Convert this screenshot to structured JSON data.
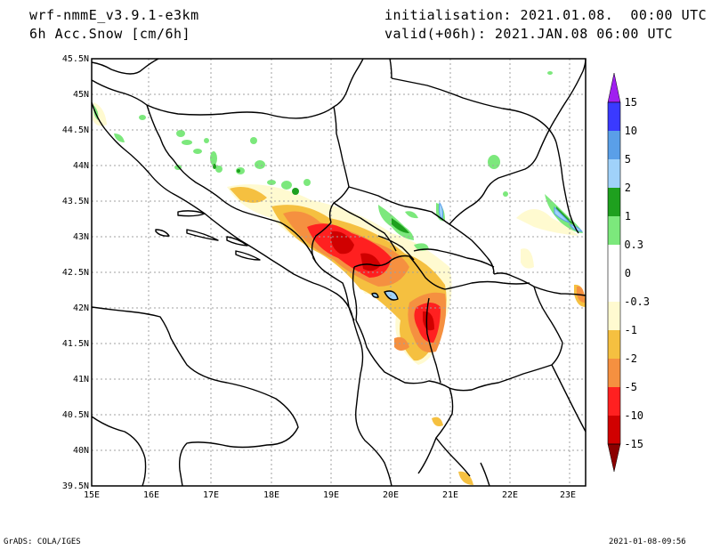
{
  "header": {
    "model": "wrf-nmmE_v3.9.1-e3km",
    "field": "6h Acc.Snow [cm/6h]",
    "init": "initialisation: 2021.01.08.  00:00 UTC",
    "valid": "valid(+06h): 2021.JAN.08 06:00 UTC"
  },
  "footer": {
    "credit": "GrADS: COLA/IGES",
    "timestamp": "2021-01-08-09:56"
  },
  "map": {
    "lon_range": [
      15,
      23.25
    ],
    "lat_range": [
      39.5,
      45.5
    ],
    "lon_labels": [
      "15E",
      "16E",
      "17E",
      "18E",
      "19E",
      "20E",
      "21E",
      "22E",
      "23E"
    ],
    "lat_labels": [
      "45.5N",
      "45N",
      "44.5N",
      "44N",
      "43.5N",
      "43N",
      "42.5N",
      "42N",
      "41.5N",
      "41N",
      "40.5N",
      "40N",
      "39.5N"
    ],
    "grid": "dotted"
  },
  "colorbar": {
    "labels": [
      "15",
      "10",
      "5",
      "2",
      "1",
      "0.3",
      "0",
      "-0.3",
      "-1",
      "-2",
      "-5",
      "-10",
      "-15"
    ],
    "colors": [
      "#a020f0",
      "#3a3aff",
      "#5a9fe8",
      "#a0d2fa",
      "#1ea01e",
      "#7ce87c",
      "#ffffff",
      "#fffad0",
      "#f5c040",
      "#f59040",
      "#ff2020",
      "#d00000",
      "#8b0000"
    ]
  }
}
